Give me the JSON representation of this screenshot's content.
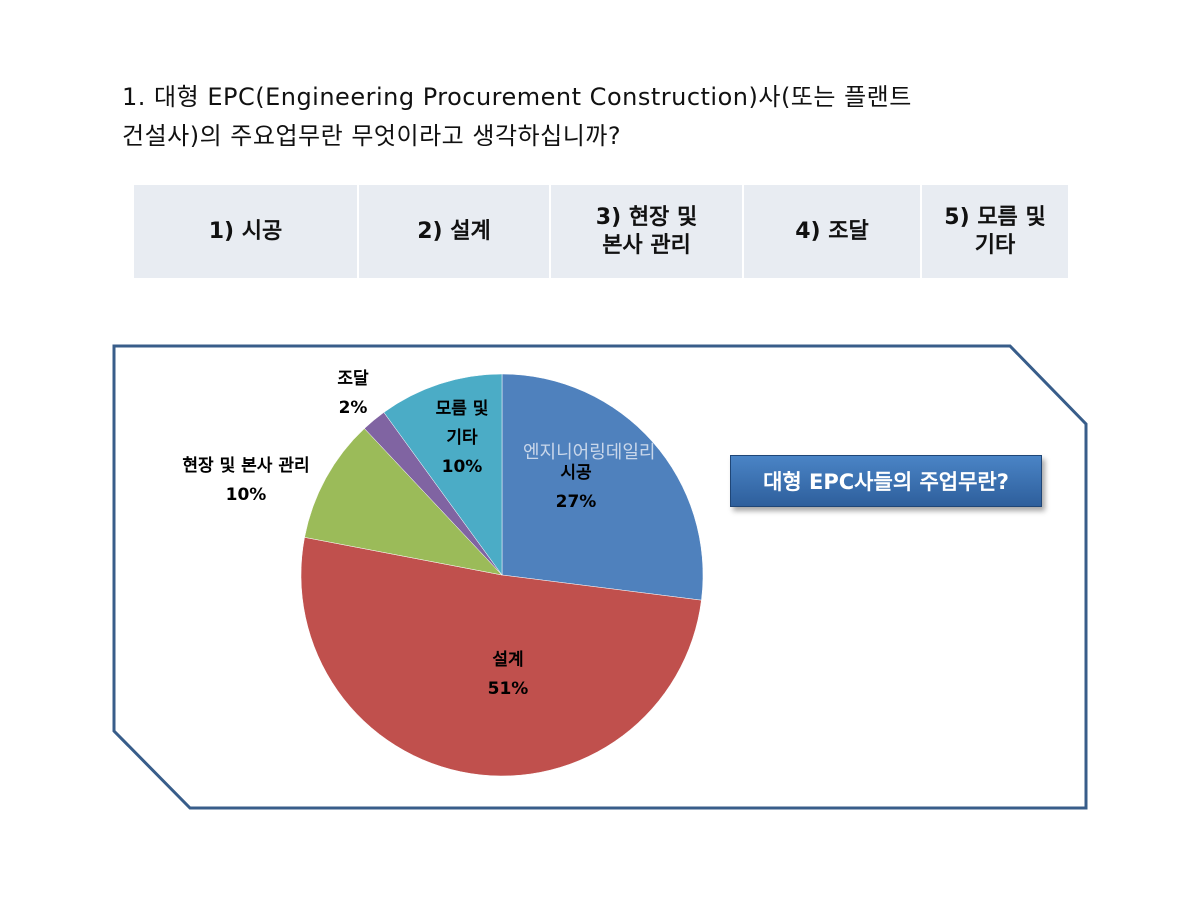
{
  "question": {
    "line1": "1. 대형 EPC(Engineering Procurement Construction)사(또는 플랜트",
    "line2": "건설사)의 주요업무란 무엇이라고 생각하십니까?"
  },
  "options": [
    {
      "line1": "1) 시공",
      "line2": ""
    },
    {
      "line1": "2) 설계",
      "line2": ""
    },
    {
      "line1": "3) 현장 및",
      "line2": "본사 관리"
    },
    {
      "line1": "4) 조달",
      "line2": ""
    },
    {
      "line1": "5) 모름 및",
      "line2": "기타"
    }
  ],
  "watermark": "엔지니어링데일리",
  "callout": "대형 EPC사들의 주업무란?",
  "chart_data": {
    "type": "pie",
    "title": "",
    "slices": [
      {
        "label": "시공",
        "value": 27,
        "pct_label": "27%",
        "color": "#4f81bd"
      },
      {
        "label": "설계",
        "value": 51,
        "pct_label": "51%",
        "color": "#c0504d"
      },
      {
        "label": "현장 및 본사 관리",
        "value": 10,
        "pct_label": "10%",
        "color": "#9bbb59"
      },
      {
        "label": "조달",
        "value": 2,
        "pct_label": "2%",
        "color": "#8064a2"
      },
      {
        "label": "모름 및\n기타",
        "value": 10,
        "pct_label": "10%",
        "color": "#4bacc6"
      }
    ]
  }
}
